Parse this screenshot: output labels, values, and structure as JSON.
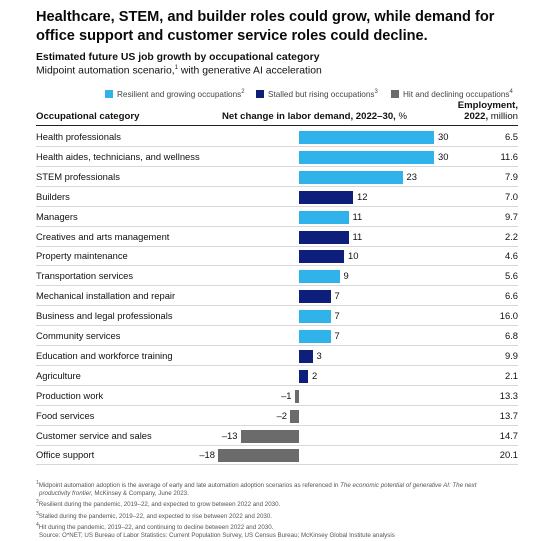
{
  "headline": "Healthcare, STEM, and builder roles could grow, while demand for office support and customer service roles could decline.",
  "chart_title": "Estimated future US job growth by occupational category",
  "scenario": {
    "text": "Midpoint automation scenario,",
    "sup": "1",
    "suffix": " with generative AI acceleration"
  },
  "legend": [
    {
      "label": "Resilient and growing occupations",
      "sup": "2",
      "color": "#2fb3ea"
    },
    {
      "label": "Stalled but rising occupations",
      "sup": "3",
      "color": "#0d1f7a"
    },
    {
      "label": "Hit and declining occupations",
      "sup": "4",
      "color": "#6b6b6b"
    }
  ],
  "headers": {
    "category": "Occupational category",
    "change": "Net change in labor demand, 2022–30,",
    "change_unit": "%",
    "employment_line1": "Employment,",
    "employment_line2": "2022,",
    "employment_unit": "million"
  },
  "chart_data": {
    "type": "bar",
    "orientation": "horizontal",
    "xlabel": "Net change in labor demand, 2022–30, %",
    "xlim": [
      -18,
      30
    ],
    "categories": [
      "Health professionals",
      "Health aides, technicians, and wellness",
      "STEM professionals",
      "Builders",
      "Managers",
      "Creatives and arts management",
      "Property maintenance",
      "Transportation services",
      "Mechanical installation and repair",
      "Business and legal professionals",
      "Community services",
      "Education and workforce training",
      "Agriculture",
      "Production work",
      "Food services",
      "Customer service and sales",
      "Office support"
    ],
    "values": [
      30,
      30,
      23,
      12,
      11,
      11,
      10,
      9,
      7,
      7,
      7,
      3,
      2,
      -1,
      -2,
      -13,
      -18
    ],
    "value_labels": [
      "30",
      "30",
      "23",
      "12",
      "11",
      "11",
      "10",
      "9",
      "7",
      "7",
      "7",
      "3",
      "2",
      "–1",
      "–2",
      "–13",
      "–18"
    ],
    "groups": [
      "resilient",
      "resilient",
      "resilient",
      "stalled",
      "resilient",
      "stalled",
      "stalled",
      "resilient",
      "stalled",
      "resilient",
      "resilient",
      "stalled",
      "stalled",
      "hit",
      "hit",
      "hit",
      "hit"
    ],
    "group_colors": {
      "resilient": "#2fb3ea",
      "stalled": "#0d1f7a",
      "hit": "#6b6b6b"
    },
    "employment_2022_million": [
      "6.5",
      "11.6",
      "7.9",
      "7.0",
      "9.7",
      "2.2",
      "4.6",
      "5.6",
      "6.6",
      "16.0",
      "6.8",
      "9.9",
      "2.1",
      "13.3",
      "13.7",
      "14.7",
      "20.1"
    ]
  },
  "footnotes": [
    {
      "sup": "1",
      "text": "Midpoint automation adoption is the average of early and late automation adoption scenarios as referenced in ",
      "italic": "The economic potential of generative AI: The next"
    },
    {
      "sup": "",
      "text": " McKinsey & Company, June 2023.",
      "italic": "productivity frontier,"
    },
    {
      "sup": "2",
      "text": "Resilient during the pandemic, 2019–22, and expected to grow between 2022 and 2030.",
      "italic": ""
    },
    {
      "sup": "3",
      "text": "Stalled during the pandemic, 2019–22, and expected to rise between 2022 and 2030.",
      "italic": ""
    },
    {
      "sup": "4",
      "text": "Hit during the pandemic, 2019–22, and continuing to decline between 2022 and 2030.",
      "italic": ""
    },
    {
      "sup": "",
      "text": "Source: O*NET; US Bureau of Labor Statistics: Current Population Survey, US Census Bureau; McKinsey Global Institute analysis",
      "italic": ""
    }
  ]
}
